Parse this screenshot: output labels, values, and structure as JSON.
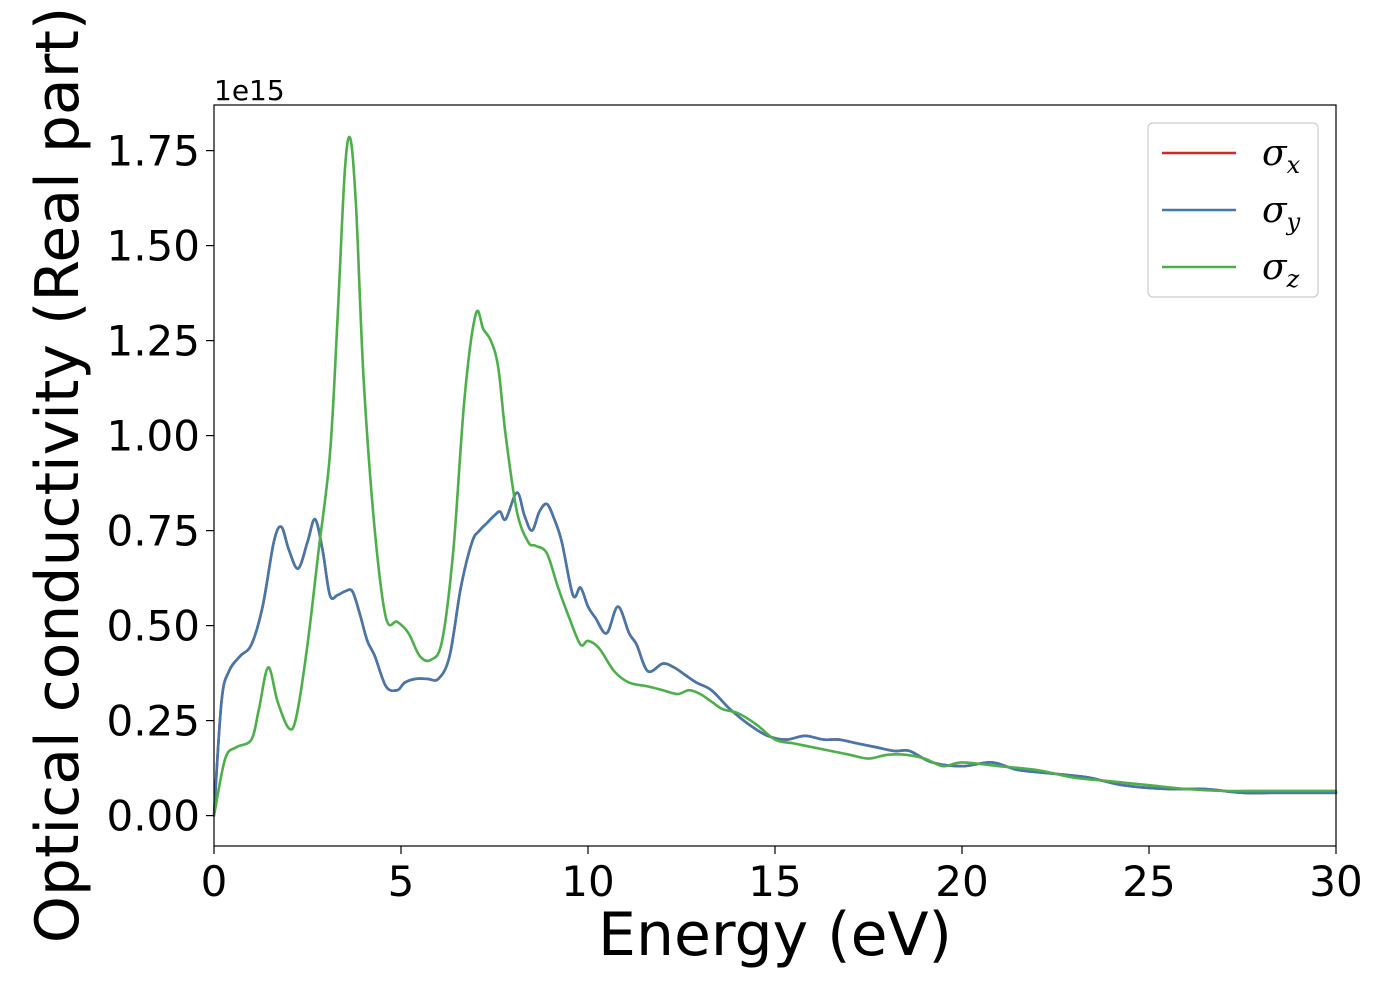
{
  "chart_data": {
    "type": "line",
    "xlabel": "Energy (eV)",
    "ylabel": "Optical conductivity (Real part)",
    "y_offset_label": "1e15",
    "xlim": [
      0,
      30
    ],
    "ylim": [
      -0.08,
      1.87
    ],
    "xticks": [
      0,
      5,
      10,
      15,
      20,
      25,
      30
    ],
    "xtick_labels": [
      "0",
      "5",
      "10",
      "15",
      "20",
      "25",
      "30"
    ],
    "yticks": [
      0.0,
      0.25,
      0.5,
      0.75,
      1.0,
      1.25,
      1.5,
      1.75
    ],
    "ytick_labels": [
      "0.00",
      "0.25",
      "0.50",
      "0.75",
      "1.00",
      "1.25",
      "1.50",
      "1.75"
    ],
    "grid": false,
    "legend_position": "top-right",
    "series": [
      {
        "name": "σx",
        "legend_base": "σ",
        "legend_sub": "x",
        "color": "#d62728",
        "x": [
          0,
          0.2,
          0.4,
          0.7,
          1.0,
          1.3,
          1.6,
          1.8,
          2.0,
          2.25,
          2.5,
          2.7,
          2.9,
          3.1,
          3.3,
          3.5,
          3.7,
          3.9,
          4.1,
          4.3,
          4.6,
          4.9,
          5.1,
          5.4,
          5.7,
          6.0,
          6.3,
          6.6,
          6.9,
          7.1,
          7.3,
          7.5,
          7.65,
          7.8,
          8.1,
          8.3,
          8.5,
          8.7,
          8.9,
          9.1,
          9.3,
          9.6,
          9.8,
          10.0,
          10.2,
          10.5,
          10.8,
          11.1,
          11.3,
          11.6,
          12.0,
          12.3,
          12.6,
          12.9,
          13.3,
          13.8,
          14.3,
          14.8,
          15.3,
          15.8,
          16.3,
          16.7,
          17.2,
          17.7,
          18.2,
          18.6,
          19.2,
          20.0,
          20.8,
          21.5,
          22.5,
          23.4,
          24.3,
          25.5,
          26.5,
          27.5,
          28.5,
          30.0
        ],
        "y": [
          0.0,
          0.3,
          0.38,
          0.42,
          0.45,
          0.55,
          0.72,
          0.76,
          0.7,
          0.65,
          0.72,
          0.78,
          0.7,
          0.58,
          0.58,
          0.59,
          0.59,
          0.53,
          0.46,
          0.42,
          0.34,
          0.33,
          0.35,
          0.36,
          0.36,
          0.36,
          0.42,
          0.6,
          0.72,
          0.75,
          0.77,
          0.79,
          0.8,
          0.78,
          0.85,
          0.79,
          0.75,
          0.8,
          0.82,
          0.78,
          0.72,
          0.58,
          0.6,
          0.55,
          0.52,
          0.48,
          0.55,
          0.48,
          0.45,
          0.38,
          0.4,
          0.39,
          0.37,
          0.35,
          0.33,
          0.28,
          0.24,
          0.21,
          0.2,
          0.21,
          0.2,
          0.2,
          0.19,
          0.18,
          0.17,
          0.17,
          0.14,
          0.13,
          0.14,
          0.12,
          0.11,
          0.1,
          0.08,
          0.07,
          0.07,
          0.06,
          0.06,
          0.06
        ]
      },
      {
        "name": "σy",
        "legend_base": "σ",
        "legend_sub": "y",
        "color": "#4477aa",
        "x": [
          0,
          0.2,
          0.4,
          0.7,
          1.0,
          1.3,
          1.6,
          1.8,
          2.0,
          2.25,
          2.5,
          2.7,
          2.9,
          3.1,
          3.3,
          3.5,
          3.7,
          3.9,
          4.1,
          4.3,
          4.6,
          4.9,
          5.1,
          5.4,
          5.7,
          6.0,
          6.3,
          6.6,
          6.9,
          7.1,
          7.3,
          7.5,
          7.65,
          7.8,
          8.1,
          8.3,
          8.5,
          8.7,
          8.9,
          9.1,
          9.3,
          9.6,
          9.8,
          10.0,
          10.2,
          10.5,
          10.8,
          11.1,
          11.3,
          11.6,
          12.0,
          12.3,
          12.6,
          12.9,
          13.3,
          13.8,
          14.3,
          14.8,
          15.3,
          15.8,
          16.3,
          16.7,
          17.2,
          17.7,
          18.2,
          18.6,
          19.2,
          20.0,
          20.8,
          21.5,
          22.5,
          23.4,
          24.3,
          25.5,
          26.5,
          27.5,
          28.5,
          30.0
        ],
        "y": [
          0.0,
          0.3,
          0.38,
          0.42,
          0.45,
          0.55,
          0.72,
          0.76,
          0.7,
          0.65,
          0.72,
          0.78,
          0.7,
          0.58,
          0.58,
          0.59,
          0.59,
          0.53,
          0.46,
          0.42,
          0.34,
          0.33,
          0.35,
          0.36,
          0.36,
          0.36,
          0.42,
          0.6,
          0.72,
          0.75,
          0.77,
          0.79,
          0.8,
          0.78,
          0.85,
          0.79,
          0.75,
          0.8,
          0.82,
          0.78,
          0.72,
          0.58,
          0.6,
          0.55,
          0.52,
          0.48,
          0.55,
          0.48,
          0.45,
          0.38,
          0.4,
          0.39,
          0.37,
          0.35,
          0.33,
          0.28,
          0.24,
          0.21,
          0.2,
          0.21,
          0.2,
          0.2,
          0.19,
          0.18,
          0.17,
          0.17,
          0.14,
          0.13,
          0.14,
          0.12,
          0.11,
          0.1,
          0.08,
          0.07,
          0.07,
          0.06,
          0.06,
          0.06
        ]
      },
      {
        "name": "σz",
        "legend_base": "σ",
        "legend_sub": "z",
        "color": "#4daf4a",
        "x": [
          0,
          0.3,
          0.6,
          1.0,
          1.2,
          1.45,
          1.7,
          2.0,
          2.2,
          2.5,
          2.8,
          3.1,
          3.3,
          3.5,
          3.65,
          3.8,
          4.0,
          4.3,
          4.6,
          4.9,
          5.2,
          5.5,
          5.8,
          6.1,
          6.4,
          6.7,
          7.0,
          7.2,
          7.4,
          7.6,
          7.8,
          8.1,
          8.4,
          8.6,
          8.9,
          9.2,
          9.5,
          9.8,
          10.0,
          10.3,
          10.7,
          11.1,
          11.6,
          12.0,
          12.4,
          12.7,
          13.0,
          13.3,
          13.6,
          14.0,
          14.5,
          15.0,
          15.5,
          16.0,
          16.5,
          17.0,
          17.5,
          18.0,
          18.5,
          19.0,
          19.5,
          20.0,
          21.0,
          22.0,
          23.0,
          24.0,
          25.0,
          26.0,
          27.0,
          28.0,
          29.0,
          30.0
        ],
        "y": [
          0.0,
          0.15,
          0.18,
          0.2,
          0.28,
          0.39,
          0.3,
          0.23,
          0.26,
          0.45,
          0.7,
          0.95,
          1.3,
          1.7,
          1.78,
          1.6,
          1.15,
          0.75,
          0.52,
          0.51,
          0.48,
          0.42,
          0.41,
          0.46,
          0.7,
          1.1,
          1.32,
          1.28,
          1.25,
          1.18,
          1.0,
          0.8,
          0.72,
          0.71,
          0.69,
          0.6,
          0.52,
          0.45,
          0.46,
          0.44,
          0.38,
          0.35,
          0.34,
          0.33,
          0.32,
          0.33,
          0.32,
          0.3,
          0.28,
          0.27,
          0.24,
          0.2,
          0.19,
          0.18,
          0.17,
          0.16,
          0.15,
          0.16,
          0.16,
          0.15,
          0.13,
          0.14,
          0.13,
          0.12,
          0.1,
          0.09,
          0.08,
          0.07,
          0.065,
          0.065,
          0.065,
          0.065
        ]
      }
    ]
  }
}
